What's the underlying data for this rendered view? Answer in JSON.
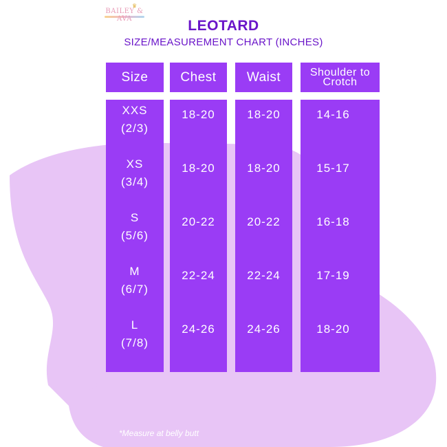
{
  "brand": {
    "logo_text": "BAILEY & AVA"
  },
  "title": "LEOTARD",
  "subtitle": "SIZE/MEASUREMENT CHART (INCHES)",
  "columns": [
    "Size",
    "Chest",
    "Waist",
    "Shoulder to Crotch"
  ],
  "rows": [
    {
      "size": "XXS",
      "age": "(2/3)",
      "chest": "18-20",
      "waist": "18-20",
      "shoulder": "14-16"
    },
    {
      "size": "XS",
      "age": "(3/4)",
      "chest": "18-20",
      "waist": "18-20",
      "shoulder": "15-17"
    },
    {
      "size": "S",
      "age": "(5/6)",
      "chest": "20-22",
      "waist": "20-22",
      "shoulder": "16-18"
    },
    {
      "size": "M",
      "age": "(6/7)",
      "chest": "22-24",
      "waist": "22-24",
      "shoulder": "17-19"
    },
    {
      "size": "L",
      "age": "(7/8)",
      "chest": "24-26",
      "waist": "24-26",
      "shoulder": "18-20"
    }
  ],
  "footnote": "*Measure at belly butt",
  "colors": {
    "accent": "#9a3cf5",
    "title": "#6a15c9",
    "blob": "#e8c5f6"
  }
}
